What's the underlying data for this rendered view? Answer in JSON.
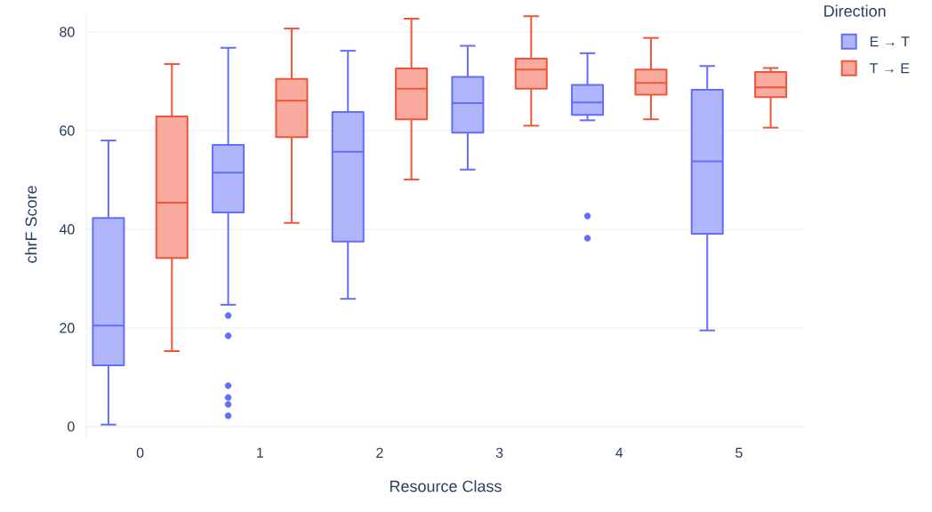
{
  "chart_data": {
    "type": "box",
    "xlabel": "Resource Class",
    "ylabel": "chrF Score",
    "legend_title": "Direction",
    "categories": [
      "0",
      "1",
      "2",
      "3",
      "4",
      "5"
    ],
    "series": [
      {
        "name": "E → T",
        "color": "#636efa",
        "boxes": [
          {
            "low": 0.4,
            "q1": 12.4,
            "median": 20.5,
            "q3": 42.3,
            "high": 58.0
          },
          {
            "low": 24.7,
            "q1": 43.4,
            "median": 51.5,
            "q3": 57.1,
            "high": 76.8,
            "outliers": [
              22.5,
              18.4,
              8.3,
              5.9,
              4.5,
              2.2
            ]
          },
          {
            "low": 25.9,
            "q1": 37.5,
            "median": 55.7,
            "q3": 63.8,
            "high": 76.2
          },
          {
            "low": 52.1,
            "q1": 59.6,
            "median": 65.6,
            "q3": 70.9,
            "high": 77.2
          },
          {
            "low": 62.1,
            "q1": 63.2,
            "median": 65.7,
            "q3": 69.3,
            "high": 75.7,
            "outliers": [
              42.7,
              38.2
            ]
          },
          {
            "low": 19.5,
            "q1": 39.1,
            "median": 53.8,
            "q3": 68.3,
            "high": 73.1
          }
        ]
      },
      {
        "name": "T → E",
        "color": "#ef553b",
        "boxes": [
          {
            "low": 15.3,
            "q1": 34.2,
            "median": 45.4,
            "q3": 62.9,
            "high": 73.5
          },
          {
            "low": 41.3,
            "q1": 58.7,
            "median": 66.1,
            "q3": 70.5,
            "high": 80.7
          },
          {
            "low": 50.1,
            "q1": 62.3,
            "median": 68.5,
            "q3": 72.6,
            "high": 82.7
          },
          {
            "low": 61.0,
            "q1": 68.5,
            "median": 72.4,
            "q3": 74.6,
            "high": 83.2
          },
          {
            "low": 62.3,
            "q1": 67.3,
            "median": 69.7,
            "q3": 72.4,
            "high": 78.8
          },
          {
            "low": 60.6,
            "q1": 66.8,
            "median": 68.8,
            "q3": 71.9,
            "high": 72.7
          }
        ]
      }
    ],
    "ylim": [
      -2,
      84
    ],
    "yticks": [
      0,
      20,
      40,
      60,
      80
    ],
    "grid": "y",
    "legend": "top right"
  }
}
